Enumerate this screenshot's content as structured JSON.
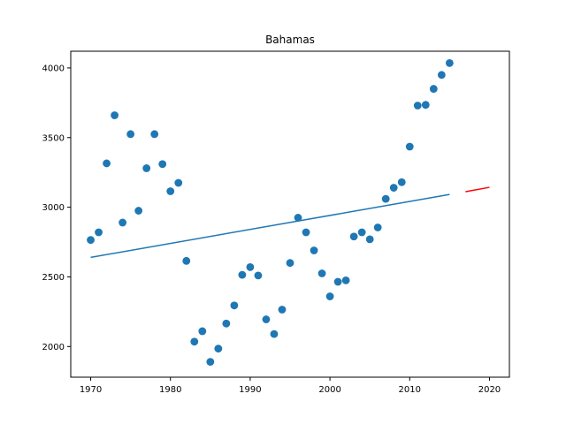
{
  "chart_data": {
    "type": "scatter",
    "title": "Bahamas",
    "xlabel": "",
    "ylabel": "",
    "xlim": [
      1967.5,
      2022.5
    ],
    "ylim": [
      1780,
      4120
    ],
    "xticks": [
      1970,
      1980,
      1990,
      2000,
      2010,
      2020
    ],
    "yticks": [
      2000,
      2500,
      3000,
      3500,
      4000
    ],
    "grid": false,
    "legend": "none",
    "colors": {
      "points": "#1f77b4",
      "fit": "#1f77b4",
      "forecast": "#ff0000"
    },
    "points": {
      "x": [
        1970,
        1971,
        1972,
        1973,
        1974,
        1975,
        1976,
        1977,
        1978,
        1979,
        1980,
        1981,
        1982,
        1983,
        1984,
        1985,
        1986,
        1987,
        1988,
        1989,
        1990,
        1991,
        1992,
        1993,
        1994,
        1995,
        1996,
        1997,
        1998,
        1999,
        2000,
        2001,
        2002,
        2003,
        2004,
        2005,
        2006,
        2007,
        2008,
        2009,
        2010,
        2011,
        2012,
        2013,
        2014,
        2015
      ],
      "y": [
        2765,
        2820,
        3315,
        3660,
        2890,
        3525,
        2975,
        3280,
        3525,
        3310,
        3115,
        3175,
        2615,
        2035,
        2110,
        1890,
        1985,
        2165,
        2295,
        2515,
        2570,
        2510,
        2195,
        2090,
        2265,
        2600,
        2925,
        2820,
        2690,
        2525,
        2360,
        2465,
        2475,
        2790,
        2820,
        2770,
        2855,
        3060,
        3140,
        3180,
        3435,
        3730,
        3735,
        3850,
        3950,
        4035
      ]
    },
    "fit_line": {
      "x": [
        1970,
        2015
      ],
      "y": [
        2640,
        3092
      ]
    },
    "forecast_line": {
      "x": [
        2017,
        2020
      ],
      "y": [
        3112,
        3143
      ]
    }
  }
}
